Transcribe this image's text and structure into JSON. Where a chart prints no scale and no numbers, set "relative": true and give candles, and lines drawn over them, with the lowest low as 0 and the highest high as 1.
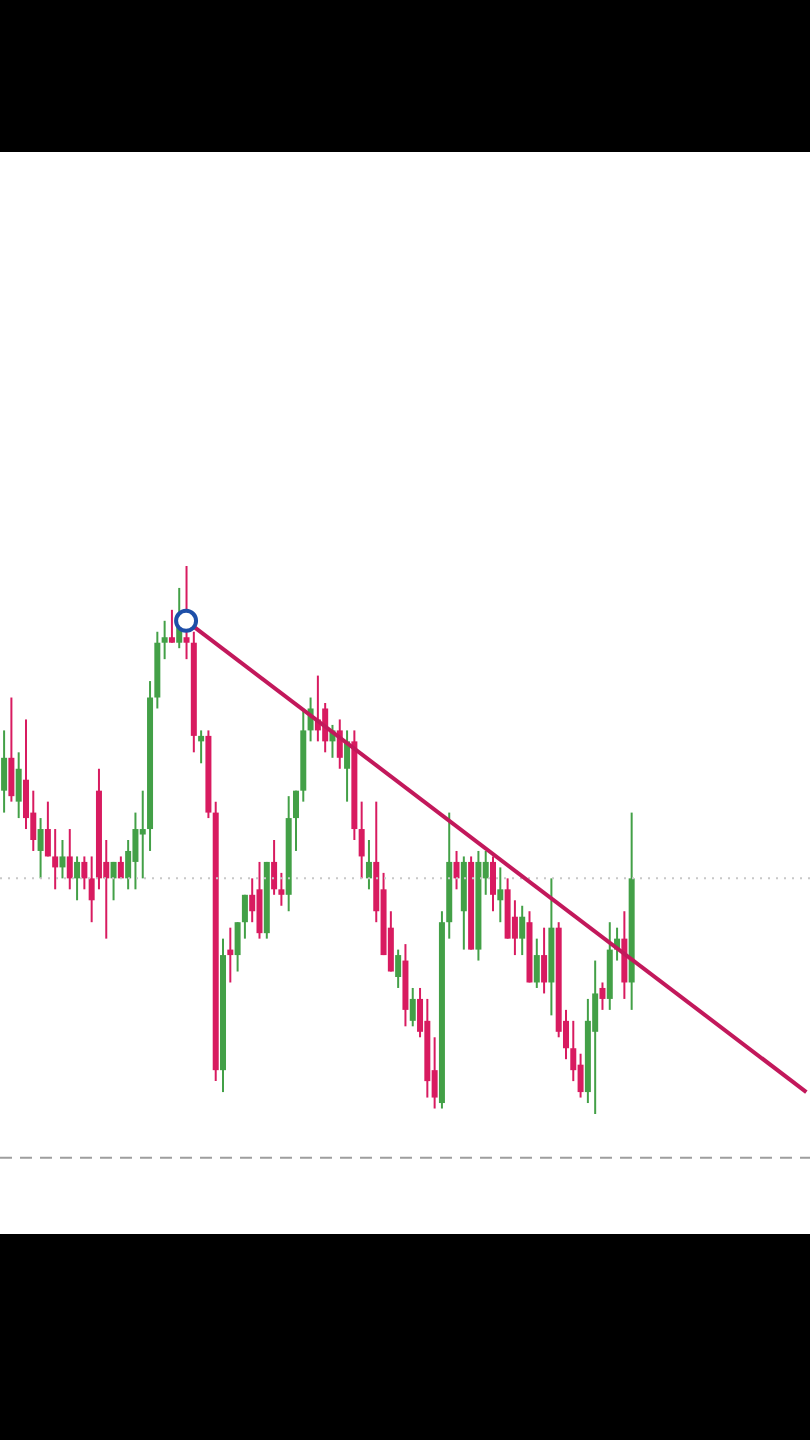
{
  "chart_data": {
    "type": "candlestick",
    "relative": true,
    "categories": [
      null,
      null,
      null,
      null,
      null,
      null,
      null,
      null,
      null,
      null,
      null,
      null,
      null,
      null,
      null,
      null,
      null,
      null,
      null,
      null,
      null,
      null,
      null,
      null,
      null,
      null,
      null,
      null,
      null,
      null,
      null,
      null,
      null,
      null,
      null,
      null,
      null,
      null,
      null,
      null,
      null,
      null,
      null,
      null,
      null,
      null,
      null,
      null,
      null,
      null,
      null,
      null,
      null,
      null,
      null,
      null,
      null,
      null,
      null,
      null,
      null,
      null,
      null,
      null,
      null,
      null,
      null,
      null,
      null,
      null,
      null,
      null,
      null,
      null,
      null,
      null,
      null,
      null,
      null,
      null,
      null,
      null,
      null,
      null,
      null,
      null,
      null,
      null,
      null,
      null,
      null,
      null,
      null,
      null,
      null,
      null,
      null,
      null,
      null,
      null,
      null,
      null,
      null,
      null,
      null,
      null,
      null,
      null,
      null,
      null,
      null
    ],
    "ohlc": [
      [
        0.59,
        0.7,
        0.55,
        0.65
      ],
      [
        0.65,
        0.76,
        0.57,
        0.58
      ],
      [
        0.57,
        0.66,
        0.54,
        0.63
      ],
      [
        0.61,
        0.72,
        0.52,
        0.54
      ],
      [
        0.55,
        0.59,
        0.48,
        0.5
      ],
      [
        0.48,
        0.54,
        0.43,
        0.52
      ],
      [
        0.52,
        0.57,
        0.47,
        0.47
      ],
      [
        0.47,
        0.52,
        0.41,
        0.45
      ],
      [
        0.45,
        0.5,
        0.43,
        0.47
      ],
      [
        0.47,
        0.52,
        0.41,
        0.43
      ],
      [
        0.43,
        0.47,
        0.39,
        0.46
      ],
      [
        0.46,
        0.47,
        0.41,
        0.43
      ],
      [
        0.43,
        0.47,
        0.35,
        0.39
      ],
      [
        0.59,
        0.63,
        0.41,
        0.43
      ],
      [
        0.46,
        0.5,
        0.32,
        0.43
      ],
      [
        0.43,
        0.46,
        0.39,
        0.46
      ],
      [
        0.46,
        0.47,
        0.43,
        0.43
      ],
      [
        0.43,
        0.5,
        0.41,
        0.48
      ],
      [
        0.46,
        0.55,
        0.41,
        0.52
      ],
      [
        0.51,
        0.59,
        0.43,
        0.52
      ],
      [
        0.52,
        0.79,
        0.48,
        0.76
      ],
      [
        0.76,
        0.88,
        0.74,
        0.86
      ],
      [
        0.86,
        0.9,
        0.83,
        0.87
      ],
      [
        0.87,
        0.92,
        0.86,
        0.86
      ],
      [
        0.86,
        0.96,
        0.85,
        0.9
      ],
      [
        0.87,
        1,
        0.83,
        0.86
      ],
      [
        0.86,
        0.88,
        0.66,
        0.69
      ],
      [
        0.68,
        0.7,
        0.64,
        0.69
      ],
      [
        0.69,
        0.7,
        0.54,
        0.55
      ],
      [
        0.55,
        0.57,
        0.06,
        0.08
      ],
      [
        0.08,
        0.32,
        0.04,
        0.29
      ],
      [
        0.3,
        0.34,
        0.24,
        0.29
      ],
      [
        0.29,
        0.35,
        0.26,
        0.35
      ],
      [
        0.35,
        0.4,
        0.32,
        0.4
      ],
      [
        0.4,
        0.43,
        0.35,
        0.37
      ],
      [
        0.41,
        0.46,
        0.32,
        0.33
      ],
      [
        0.33,
        0.46,
        0.32,
        0.46
      ],
      [
        0.46,
        0.5,
        0.4,
        0.41
      ],
      [
        0.41,
        0.44,
        0.38,
        0.4
      ],
      [
        0.4,
        0.58,
        0.37,
        0.54
      ],
      [
        0.54,
        0.59,
        0.48,
        0.59
      ],
      [
        0.59,
        0.74,
        0.57,
        0.7
      ],
      [
        0.7,
        0.76,
        0.68,
        0.74
      ],
      [
        0.72,
        0.8,
        0.68,
        0.7
      ],
      [
        0.74,
        0.75,
        0.66,
        0.68
      ],
      [
        0.68,
        0.71,
        0.65,
        0.7
      ],
      [
        0.7,
        0.72,
        0.63,
        0.65
      ],
      [
        0.63,
        0.7,
        0.57,
        0.68
      ],
      [
        0.68,
        0.7,
        0.5,
        0.52
      ],
      [
        0.52,
        0.57,
        0.43,
        0.47
      ],
      [
        0.43,
        0.5,
        0.41,
        0.46
      ],
      [
        0.46,
        0.57,
        0.35,
        0.37
      ],
      [
        0.41,
        0.44,
        0.29,
        0.29
      ],
      [
        0.34,
        0.37,
        0.26,
        0.26
      ],
      [
        0.25,
        0.3,
        0.23,
        0.29
      ],
      [
        0.28,
        0.31,
        0.16,
        0.19
      ],
      [
        0.17,
        0.23,
        0.16,
        0.21
      ],
      [
        0.21,
        0.23,
        0.14,
        0.15
      ],
      [
        0.17,
        0.21,
        0.03,
        0.06
      ],
      [
        0.08,
        0.14,
        0.01,
        0.03
      ],
      [
        0.02,
        0.37,
        0.01,
        0.35
      ],
      [
        0.35,
        0.55,
        0.32,
        0.46
      ],
      [
        0.46,
        0.48,
        0.41,
        0.43
      ],
      [
        0.37,
        0.47,
        0.3,
        0.46
      ],
      [
        0.46,
        0.47,
        0.3,
        0.3
      ],
      [
        0.3,
        0.48,
        0.28,
        0.46
      ],
      [
        0.43,
        0.48,
        0.4,
        0.46
      ],
      [
        0.46,
        0.47,
        0.37,
        0.4
      ],
      [
        0.39,
        0.45,
        0.35,
        0.41
      ],
      [
        0.41,
        0.43,
        0.32,
        0.32
      ],
      [
        0.36,
        0.39,
        0.29,
        0.32
      ],
      [
        0.32,
        0.38,
        0.29,
        0.36
      ],
      [
        0.35,
        0.37,
        0.24,
        0.24
      ],
      [
        0.24,
        0.32,
        0.23,
        0.29
      ],
      [
        0.29,
        0.34,
        0.22,
        0.24
      ],
      [
        0.24,
        0.43,
        0.18,
        0.34
      ],
      [
        0.34,
        0.35,
        0.14,
        0.15
      ],
      [
        0.17,
        0.19,
        0.1,
        0.12
      ],
      [
        0.12,
        0.17,
        0.06,
        0.08
      ],
      [
        0.09,
        0.11,
        0.03,
        0.04
      ],
      [
        0.04,
        0.21,
        0.02,
        0.17
      ],
      [
        0.15,
        0.28,
        0,
        0.22
      ],
      [
        0.23,
        0.24,
        0.19,
        0.21
      ],
      [
        0.21,
        0.35,
        0.19,
        0.3
      ],
      [
        0.3,
        0.34,
        0.28,
        0.32
      ],
      [
        0.32,
        0.37,
        0.21,
        0.24
      ],
      [
        0.24,
        0.55,
        0.19,
        0.43
      ],
      null,
      null,
      null,
      null,
      null,
      null,
      null,
      null,
      null,
      null,
      null,
      null,
      null,
      null,
      null,
      null,
      null,
      null,
      null,
      null,
      null,
      null,
      null,
      null
    ],
    "colors": [
      "#43a047",
      "#d81b60",
      "#43a047",
      "#d81b60",
      "#d81b60",
      "#43a047",
      "#d81b60",
      "#d81b60",
      "#43a047",
      "#d81b60",
      "#43a047",
      "#d81b60",
      "#d81b60",
      "#d81b60",
      "#d81b60",
      "#43a047",
      "#d81b60",
      "#43a047",
      "#43a047",
      "#43a047",
      "#43a047",
      "#43a047",
      "#43a047",
      "#d81b60",
      "#43a047",
      "#d81b60",
      "#d81b60",
      "#43a047",
      "#d81b60",
      "#d81b60",
      "#43a047",
      "#d81b60",
      "#43a047",
      "#43a047",
      "#d81b60",
      "#d81b60",
      "#43a047",
      "#d81b60",
      "#d81b60",
      "#43a047",
      "#43a047",
      "#43a047",
      "#43a047",
      "#d81b60",
      "#d81b60",
      "#43a047",
      "#d81b60",
      "#43a047",
      "#d81b60",
      "#d81b60",
      "#43a047",
      "#d81b60",
      "#d81b60",
      "#d81b60",
      "#43a047",
      "#d81b60",
      "#43a047",
      "#d81b60",
      "#d81b60",
      "#d81b60",
      "#43a047",
      "#43a047",
      "#d81b60",
      "#43a047",
      "#d81b60",
      "#43a047",
      "#43a047",
      "#d81b60",
      "#43a047",
      "#d81b60",
      "#d81b60",
      "#43a047",
      "#d81b60",
      "#43a047",
      "#d81b60",
      "#43a047",
      "#d81b60",
      "#d81b60",
      "#d81b60",
      "#d81b60",
      "#43a047",
      "#43a047",
      "#d81b60",
      "#43a047",
      "#43a047",
      "#d81b60",
      "#43a047",
      null,
      null,
      null,
      null,
      null,
      null,
      null,
      null,
      null,
      null,
      null,
      null,
      null,
      null,
      null,
      null,
      null,
      null,
      null,
      null,
      null,
      null,
      null,
      null
    ],
    "series": [
      {
        "type": "line",
        "color": "#c2185b",
        "values": [
          null,
          null,
          null,
          null,
          null,
          null,
          null,
          null,
          null,
          null,
          null,
          null,
          null,
          null,
          null,
          null,
          null,
          null,
          null,
          null,
          null,
          null,
          null,
          null,
          null,
          0.9,
          null,
          null,
          null,
          null,
          null,
          null,
          null,
          null,
          null,
          null,
          null,
          null,
          null,
          null,
          null,
          null,
          null,
          null,
          null,
          null,
          null,
          null,
          null,
          null,
          null,
          null,
          null,
          null,
          null,
          null,
          null,
          null,
          null,
          null,
          null,
          null,
          null,
          null,
          null,
          null,
          null,
          null,
          null,
          null,
          null,
          null,
          null,
          null,
          null,
          null,
          null,
          null,
          null,
          null,
          null,
          null,
          null,
          null,
          null,
          null,
          null,
          null,
          null,
          null,
          null,
          null,
          null,
          null,
          null,
          null,
          null,
          null,
          null,
          null,
          null,
          null,
          null,
          null,
          null,
          null,
          null,
          null,
          null,
          null,
          0.04
        ]
      }
    ],
    "ref_lines": [
      {
        "axis": "y",
        "value": 0.43,
        "color": "#c8c8c8",
        "line_style": "dotted"
      },
      {
        "axis": "y",
        "value": -0.08,
        "color": "#9e9e9e",
        "line_style": "dashed"
      }
    ]
  }
}
